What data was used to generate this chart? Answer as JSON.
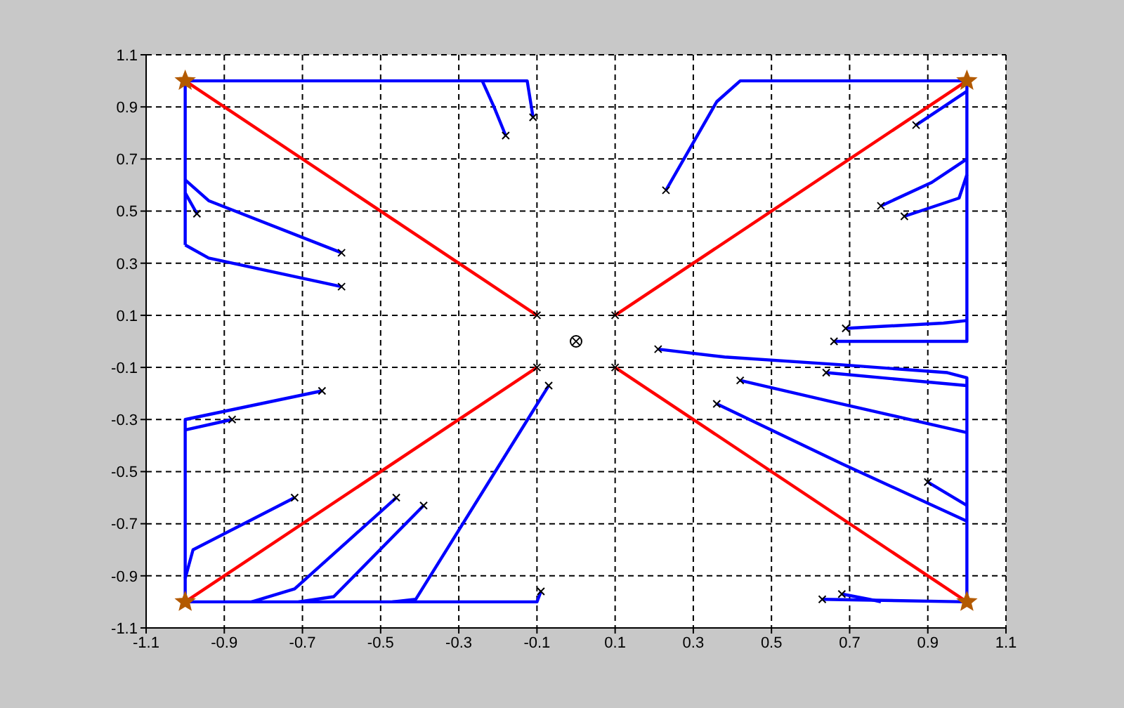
{
  "chart_data": {
    "type": "line",
    "xlim": [
      -1.1,
      1.1
    ],
    "ylim": [
      -1.1,
      1.1
    ],
    "xticks": [
      -1.1,
      -0.9,
      -0.7,
      -0.5,
      -0.3,
      -0.1,
      0.1,
      0.3,
      0.5,
      0.7,
      0.9,
      1.1
    ],
    "yticks": [
      -1.1,
      -0.9,
      -0.7,
      -0.5,
      -0.3,
      -0.1,
      0.1,
      0.3,
      0.5,
      0.7,
      0.9,
      1.1
    ],
    "grid": true,
    "line_style": "solid",
    "series": [
      {
        "color": "#ff0000",
        "x": [
          -1,
          -0.1
        ],
        "values": [
          1,
          0.1
        ]
      },
      {
        "color": "#ff0000",
        "x": [
          1,
          0.1
        ],
        "values": [
          1,
          0.1
        ]
      },
      {
        "color": "#ff0000",
        "x": [
          -1,
          -0.1
        ],
        "values": [
          -1,
          -0.1
        ]
      },
      {
        "color": "#ff0000",
        "x": [
          1,
          0.1
        ],
        "values": [
          -1,
          -0.1
        ]
      },
      {
        "type": "line",
        "color": "#0000ff",
        "x": [
          -0.11,
          -0.125,
          -1,
          -1
        ],
        "values": [
          0.86,
          1,
          1,
          0.37
        ]
      },
      {
        "type": "line",
        "color": "#0000ff",
        "x": [
          -0.24,
          -0.21,
          -0.18
        ],
        "values": [
          1,
          0.9,
          0.79
        ]
      },
      {
        "type": "line",
        "color": "#0000ff",
        "x": [
          -1,
          -0.94,
          -0.6
        ],
        "values": [
          0.62,
          0.54,
          0.34
        ]
      },
      {
        "type": "line",
        "color": "#0000ff",
        "x": [
          -1,
          -0.97
        ],
        "values": [
          0.57,
          0.49
        ]
      },
      {
        "type": "line",
        "color": "#0000ff",
        "x": [
          -1,
          -0.94,
          -0.6
        ],
        "values": [
          0.37,
          0.32,
          0.21
        ]
      },
      {
        "type": "line",
        "color": "#0000ff",
        "x": [
          0.23,
          0.36,
          0.42,
          1,
          1,
          0.66
        ],
        "values": [
          0.58,
          0.92,
          1,
          1,
          0,
          0
        ]
      },
      {
        "type": "line",
        "color": "#0000ff",
        "x": [
          1,
          0.94,
          0.69
        ],
        "values": [
          0.08,
          0.07,
          0.05
        ]
      },
      {
        "type": "line",
        "color": "#0000ff",
        "x": [
          1,
          0.87
        ],
        "values": [
          0.96,
          0.83
        ]
      },
      {
        "type": "line",
        "color": "#0000ff",
        "x": [
          1,
          0.91,
          0.78
        ],
        "values": [
          0.7,
          0.61,
          0.52
        ]
      },
      {
        "type": "line",
        "color": "#0000ff",
        "x": [
          1,
          0.98,
          0.84
        ],
        "values": [
          0.64,
          0.55,
          0.48
        ]
      },
      {
        "type": "line",
        "color": "#0000ff",
        "x": [
          -0.65,
          -1,
          -1,
          -0.1,
          -0.09
        ],
        "values": [
          -0.19,
          -0.3,
          -1,
          -1,
          -0.96
        ]
      },
      {
        "type": "line",
        "color": "#0000ff",
        "x": [
          -1,
          -0.88
        ],
        "values": [
          -0.34,
          -0.3
        ]
      },
      {
        "type": "line",
        "color": "#0000ff",
        "x": [
          -1,
          -0.98,
          -0.72
        ],
        "values": [
          -0.91,
          -0.8,
          -0.6
        ]
      },
      {
        "type": "line",
        "color": "#0000ff",
        "x": [
          -0.83,
          -0.72,
          -0.46
        ],
        "values": [
          -1,
          -0.95,
          -0.6
        ]
      },
      {
        "type": "line",
        "color": "#0000ff",
        "x": [
          -0.71,
          -0.62,
          -0.39
        ],
        "values": [
          -1,
          -0.98,
          -0.63
        ]
      },
      {
        "type": "line",
        "color": "#0000ff",
        "x": [
          -0.47,
          -0.41,
          -0.07
        ],
        "values": [
          -1,
          -0.99,
          -0.17
        ]
      },
      {
        "type": "line",
        "color": "#0000ff",
        "x": [
          0.21,
          0.38,
          0.68,
          0.95,
          1,
          1,
          0.63
        ],
        "values": [
          -0.03,
          -0.06,
          -0.09,
          -0.12,
          -0.14,
          -1,
          -0.99
        ]
      },
      {
        "type": "line",
        "color": "#0000ff",
        "x": [
          1,
          0.64
        ],
        "values": [
          -0.17,
          -0.12
        ]
      },
      {
        "type": "line",
        "color": "#0000ff",
        "x": [
          1,
          0.65,
          0.42
        ],
        "values": [
          -0.35,
          -0.23,
          -0.15
        ]
      },
      {
        "type": "line",
        "color": "#0000ff",
        "x": [
          1,
          0.9
        ],
        "values": [
          -0.63,
          -0.54
        ]
      },
      {
        "type": "line",
        "color": "#0000ff",
        "x": [
          1,
          0.68,
          0.36
        ],
        "values": [
          -0.69,
          -0.47,
          -0.24
        ]
      },
      {
        "type": "line",
        "color": "#0000ff",
        "x": [
          0.78,
          0.75,
          0.68
        ],
        "values": [
          -1,
          -0.99,
          -0.97
        ]
      },
      {
        "type": "scatter",
        "marker": "cross",
        "color": "#000000",
        "x": [
          -0.11,
          -0.18,
          -0.6,
          -0.97,
          -0.6,
          0.23,
          0.66,
          0.69,
          0.87,
          0.78,
          0.84,
          -0.65,
          -0.88,
          -0.72,
          -0.46,
          -0.39,
          -0.07,
          -0.09,
          0.21,
          0.63,
          0.64,
          0.42,
          0.9,
          0.36,
          0.68,
          -0.1,
          0.1,
          -0.1,
          0.1
        ],
        "values": [
          0.86,
          0.79,
          0.34,
          0.49,
          0.21,
          0.58,
          0,
          0.05,
          0.83,
          0.52,
          0.48,
          -0.19,
          -0.3,
          -0.6,
          -0.6,
          -0.63,
          -0.17,
          -0.96,
          -0.03,
          -0.99,
          -0.12,
          -0.15,
          -0.54,
          -0.24,
          -0.97,
          0.1,
          0.1,
          -0.1,
          -0.1
        ]
      },
      {
        "type": "scatter",
        "marker": "star",
        "color": "#b35a00",
        "x": [
          -1,
          1,
          -1,
          1
        ],
        "values": [
          1,
          1,
          -1,
          -1
        ]
      },
      {
        "type": "scatter",
        "marker": "circle",
        "color": "#000000",
        "x": [
          0
        ],
        "values": [
          0
        ]
      }
    ]
  }
}
